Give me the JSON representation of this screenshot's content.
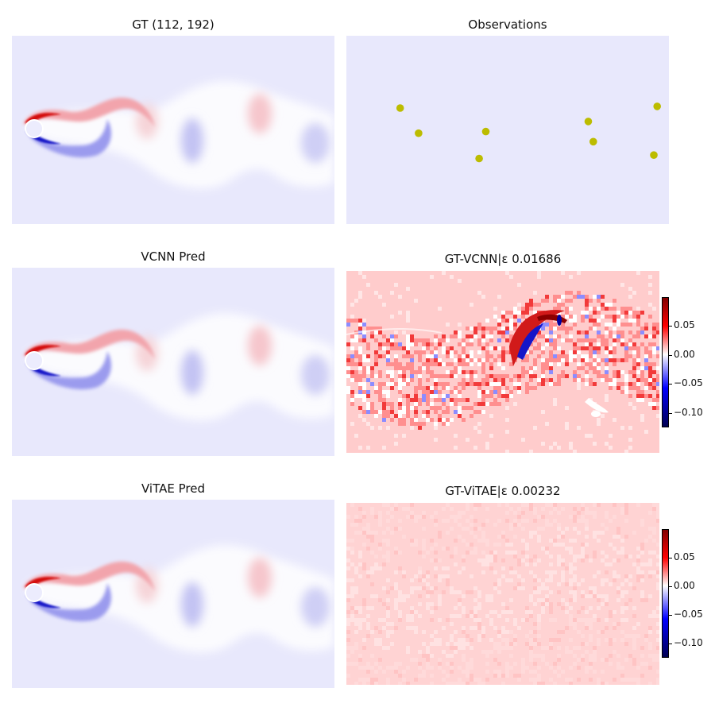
{
  "chart_data": [
    {
      "type": "heatmap",
      "title": "GT (112, 192)",
      "colormap": "seismic",
      "field": "vortex-street"
    },
    {
      "type": "scatter",
      "title": "Observations",
      "marker_color": "#bcbc00",
      "background": "#e8e8fc",
      "x": [
        32,
        43,
        83,
        79,
        144,
        147,
        185,
        183
      ],
      "y": [
        43,
        58,
        57,
        73,
        51,
        63,
        42,
        71
      ],
      "xlim": [
        0,
        192
      ],
      "ylim": [
        112,
        0
      ]
    },
    {
      "type": "heatmap",
      "title": "VCNN Pred",
      "colormap": "seismic",
      "field": "vortex-street"
    },
    {
      "type": "heatmap",
      "title": "GT-VCNN|ε 0.01686",
      "colormap": "seismic",
      "field": "error-large",
      "colorbar": {
        "ticks": [
          "0.05",
          "0.00",
          "−0.05",
          "−0.10"
        ],
        "range": [
          -0.125,
          0.1
        ]
      }
    },
    {
      "type": "heatmap",
      "title": "ViTAE Pred",
      "colormap": "seismic",
      "field": "vortex-street"
    },
    {
      "type": "heatmap",
      "title": "GT-ViTAE|ε 0.00232",
      "colormap": "seismic",
      "field": "error-small",
      "colorbar": {
        "ticks": [
          "0.05",
          "0.00",
          "−0.05",
          "−0.10"
        ],
        "range": [
          -0.125,
          0.1
        ]
      }
    }
  ]
}
